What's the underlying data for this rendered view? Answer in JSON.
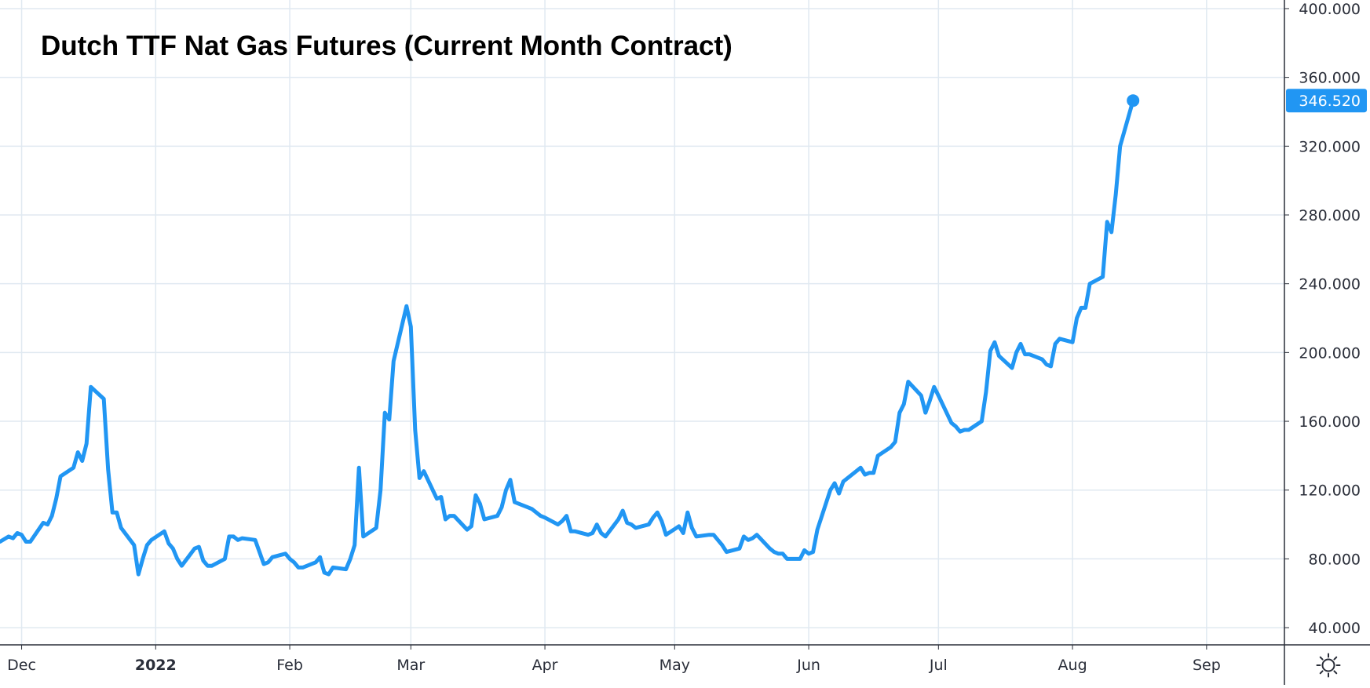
{
  "colors": {
    "series": "#2196f3",
    "grid": "#e0e9f1",
    "axis": "#2a2e39",
    "label_text": "#ffffff",
    "background": "#ffffff"
  },
  "icons": {
    "settings": "sun-icon"
  },
  "chart_data": {
    "type": "line",
    "title": "Dutch TTF Nat Gas Futures (Current Month Contract)",
    "xlabel": "",
    "ylabel": "",
    "grid": true,
    "y_axis_position": "right",
    "ylim": [
      30,
      405
    ],
    "y_ticks": [
      40,
      80,
      120,
      160,
      200,
      240,
      280,
      320,
      360,
      400
    ],
    "y_tick_labels": [
      "40.000",
      "80.000",
      "120.000",
      "160.000",
      "200.000",
      "240.000",
      "280.000",
      "320.000",
      "360.000",
      "400.000"
    ],
    "x_ticks": [
      {
        "date": "2021-12-01",
        "label": "Dec",
        "bold": false
      },
      {
        "date": "2022-01-01",
        "label": "2022",
        "bold": true
      },
      {
        "date": "2022-02-01",
        "label": "Feb",
        "bold": false
      },
      {
        "date": "2022-03-01",
        "label": "Mar",
        "bold": false
      },
      {
        "date": "2022-04-01",
        "label": "Apr",
        "bold": false
      },
      {
        "date": "2022-05-01",
        "label": "May",
        "bold": false
      },
      {
        "date": "2022-06-01",
        "label": "Jun",
        "bold": false
      },
      {
        "date": "2022-07-01",
        "label": "Jul",
        "bold": false
      },
      {
        "date": "2022-08-01",
        "label": "Aug",
        "bold": false
      },
      {
        "date": "2022-09-01",
        "label": "Sep",
        "bold": false
      }
    ],
    "x_range": [
      "2021-11-26",
      "2022-09-19"
    ],
    "last_value_label": "346.520",
    "series": [
      {
        "values": [
          [
            "2021-11-26",
            90
          ],
          [
            "2021-11-28",
            93
          ],
          [
            "2021-11-29",
            92
          ],
          [
            "2021-11-30",
            95
          ],
          [
            "2021-12-01",
            94
          ],
          [
            "2021-12-02",
            90
          ],
          [
            "2021-12-03",
            90
          ],
          [
            "2021-12-06",
            101
          ],
          [
            "2021-12-07",
            100
          ],
          [
            "2021-12-08",
            105
          ],
          [
            "2021-12-09",
            115
          ],
          [
            "2021-12-10",
            128
          ],
          [
            "2021-12-13",
            133
          ],
          [
            "2021-12-14",
            142
          ],
          [
            "2021-12-15",
            137
          ],
          [
            "2021-12-16",
            147
          ],
          [
            "2021-12-17",
            180
          ],
          [
            "2021-12-20",
            173
          ],
          [
            "2021-12-21",
            132
          ],
          [
            "2021-12-22",
            107
          ],
          [
            "2021-12-23",
            107
          ],
          [
            "2021-12-24",
            98
          ],
          [
            "2021-12-27",
            88
          ],
          [
            "2021-12-28",
            71
          ],
          [
            "2021-12-29",
            80
          ],
          [
            "2021-12-30",
            88
          ],
          [
            "2021-12-31",
            91
          ],
          [
            "2022-01-03",
            96
          ],
          [
            "2022-01-04",
            89
          ],
          [
            "2022-01-05",
            86
          ],
          [
            "2022-01-06",
            80
          ],
          [
            "2022-01-07",
            76
          ],
          [
            "2022-01-10",
            86
          ],
          [
            "2022-01-11",
            87
          ],
          [
            "2022-01-12",
            79
          ],
          [
            "2022-01-13",
            76
          ],
          [
            "2022-01-14",
            76
          ],
          [
            "2022-01-17",
            80
          ],
          [
            "2022-01-18",
            93
          ],
          [
            "2022-01-19",
            93
          ],
          [
            "2022-01-20",
            91
          ],
          [
            "2022-01-21",
            92
          ],
          [
            "2022-01-24",
            91
          ],
          [
            "2022-01-25",
            84
          ],
          [
            "2022-01-26",
            77
          ],
          [
            "2022-01-27",
            78
          ],
          [
            "2022-01-28",
            81
          ],
          [
            "2022-01-31",
            83
          ],
          [
            "2022-02-01",
            80
          ],
          [
            "2022-02-02",
            78
          ],
          [
            "2022-02-03",
            75
          ],
          [
            "2022-02-04",
            75
          ],
          [
            "2022-02-07",
            78
          ],
          [
            "2022-02-08",
            81
          ],
          [
            "2022-02-09",
            72
          ],
          [
            "2022-02-10",
            71
          ],
          [
            "2022-02-11",
            75
          ],
          [
            "2022-02-14",
            74
          ],
          [
            "2022-02-15",
            80
          ],
          [
            "2022-02-16",
            88
          ],
          [
            "2022-02-17",
            133
          ],
          [
            "2022-02-18",
            93
          ],
          [
            "2022-02-21",
            98
          ],
          [
            "2022-02-22",
            120
          ],
          [
            "2022-02-23",
            165
          ],
          [
            "2022-02-24",
            161
          ],
          [
            "2022-02-25",
            195
          ],
          [
            "2022-02-28",
            227
          ],
          [
            "2022-03-01",
            215
          ],
          [
            "2022-03-02",
            155
          ],
          [
            "2022-03-03",
            127
          ],
          [
            "2022-03-04",
            131
          ],
          [
            "2022-03-07",
            115
          ],
          [
            "2022-03-08",
            116
          ],
          [
            "2022-03-09",
            103
          ],
          [
            "2022-03-10",
            105
          ],
          [
            "2022-03-11",
            105
          ],
          [
            "2022-03-14",
            97
          ],
          [
            "2022-03-15",
            99
          ],
          [
            "2022-03-16",
            117
          ],
          [
            "2022-03-17",
            112
          ],
          [
            "2022-03-18",
            103
          ],
          [
            "2022-03-21",
            105
          ],
          [
            "2022-03-22",
            110
          ],
          [
            "2022-03-23",
            120
          ],
          [
            "2022-03-24",
            126
          ],
          [
            "2022-03-25",
            113
          ],
          [
            "2022-03-28",
            110
          ],
          [
            "2022-03-29",
            109
          ],
          [
            "2022-03-30",
            107
          ],
          [
            "2022-03-31",
            105
          ],
          [
            "2022-04-01",
            104
          ],
          [
            "2022-04-04",
            100
          ],
          [
            "2022-04-05",
            102
          ],
          [
            "2022-04-06",
            105
          ],
          [
            "2022-04-07",
            96
          ],
          [
            "2022-04-08",
            96
          ],
          [
            "2022-04-11",
            94
          ],
          [
            "2022-04-12",
            95
          ],
          [
            "2022-04-13",
            100
          ],
          [
            "2022-04-14",
            95
          ],
          [
            "2022-04-15",
            93
          ],
          [
            "2022-04-18",
            103
          ],
          [
            "2022-04-19",
            108
          ],
          [
            "2022-04-20",
            101
          ],
          [
            "2022-04-21",
            100
          ],
          [
            "2022-04-22",
            98
          ],
          [
            "2022-04-25",
            100
          ],
          [
            "2022-04-26",
            104
          ],
          [
            "2022-04-27",
            107
          ],
          [
            "2022-04-28",
            102
          ],
          [
            "2022-04-29",
            94
          ],
          [
            "2022-05-02",
            99
          ],
          [
            "2022-05-03",
            95
          ],
          [
            "2022-05-04",
            107
          ],
          [
            "2022-05-05",
            98
          ],
          [
            "2022-05-06",
            93
          ],
          [
            "2022-05-09",
            94
          ],
          [
            "2022-05-10",
            94
          ],
          [
            "2022-05-11",
            91
          ],
          [
            "2022-05-12",
            88
          ],
          [
            "2022-05-13",
            84
          ],
          [
            "2022-05-16",
            86
          ],
          [
            "2022-05-17",
            93
          ],
          [
            "2022-05-18",
            91
          ],
          [
            "2022-05-19",
            92
          ],
          [
            "2022-05-20",
            94
          ],
          [
            "2022-05-23",
            86
          ],
          [
            "2022-05-24",
            84
          ],
          [
            "2022-05-25",
            83
          ],
          [
            "2022-05-26",
            83
          ],
          [
            "2022-05-27",
            80
          ],
          [
            "2022-05-30",
            80
          ],
          [
            "2022-05-31",
            85
          ],
          [
            "2022-06-01",
            83
          ],
          [
            "2022-06-02",
            84
          ],
          [
            "2022-06-03",
            97
          ],
          [
            "2022-06-06",
            120
          ],
          [
            "2022-06-07",
            124
          ],
          [
            "2022-06-08",
            118
          ],
          [
            "2022-06-09",
            125
          ],
          [
            "2022-06-10",
            127
          ],
          [
            "2022-06-13",
            133
          ],
          [
            "2022-06-14",
            129
          ],
          [
            "2022-06-15",
            130
          ],
          [
            "2022-06-16",
            130
          ],
          [
            "2022-06-17",
            140
          ],
          [
            "2022-06-20",
            145
          ],
          [
            "2022-06-21",
            148
          ],
          [
            "2022-06-22",
            165
          ],
          [
            "2022-06-23",
            170
          ],
          [
            "2022-06-24",
            183
          ],
          [
            "2022-06-27",
            175
          ],
          [
            "2022-06-28",
            165
          ],
          [
            "2022-06-29",
            172
          ],
          [
            "2022-06-30",
            180
          ],
          [
            "2022-07-01",
            175
          ],
          [
            "2022-07-04",
            159
          ],
          [
            "2022-07-05",
            157
          ],
          [
            "2022-07-06",
            154
          ],
          [
            "2022-07-07",
            155
          ],
          [
            "2022-07-08",
            155
          ],
          [
            "2022-07-11",
            160
          ],
          [
            "2022-07-12",
            177
          ],
          [
            "2022-07-13",
            201
          ],
          [
            "2022-07-14",
            206
          ],
          [
            "2022-07-15",
            198
          ],
          [
            "2022-07-18",
            191
          ],
          [
            "2022-07-19",
            200
          ],
          [
            "2022-07-20",
            205
          ],
          [
            "2022-07-21",
            199
          ],
          [
            "2022-07-22",
            199
          ],
          [
            "2022-07-25",
            196
          ],
          [
            "2022-07-26",
            193
          ],
          [
            "2022-07-27",
            192
          ],
          [
            "2022-07-28",
            205
          ],
          [
            "2022-07-29",
            208
          ],
          [
            "2022-08-01",
            206
          ],
          [
            "2022-08-02",
            220
          ],
          [
            "2022-08-03",
            226
          ],
          [
            "2022-08-04",
            226
          ],
          [
            "2022-08-05",
            240
          ],
          [
            "2022-08-08",
            244
          ],
          [
            "2022-08-09",
            276
          ],
          [
            "2022-08-10",
            270
          ],
          [
            "2022-08-11",
            292
          ],
          [
            "2022-08-12",
            320
          ],
          [
            "2022-08-15",
            346.52
          ]
        ]
      }
    ]
  }
}
